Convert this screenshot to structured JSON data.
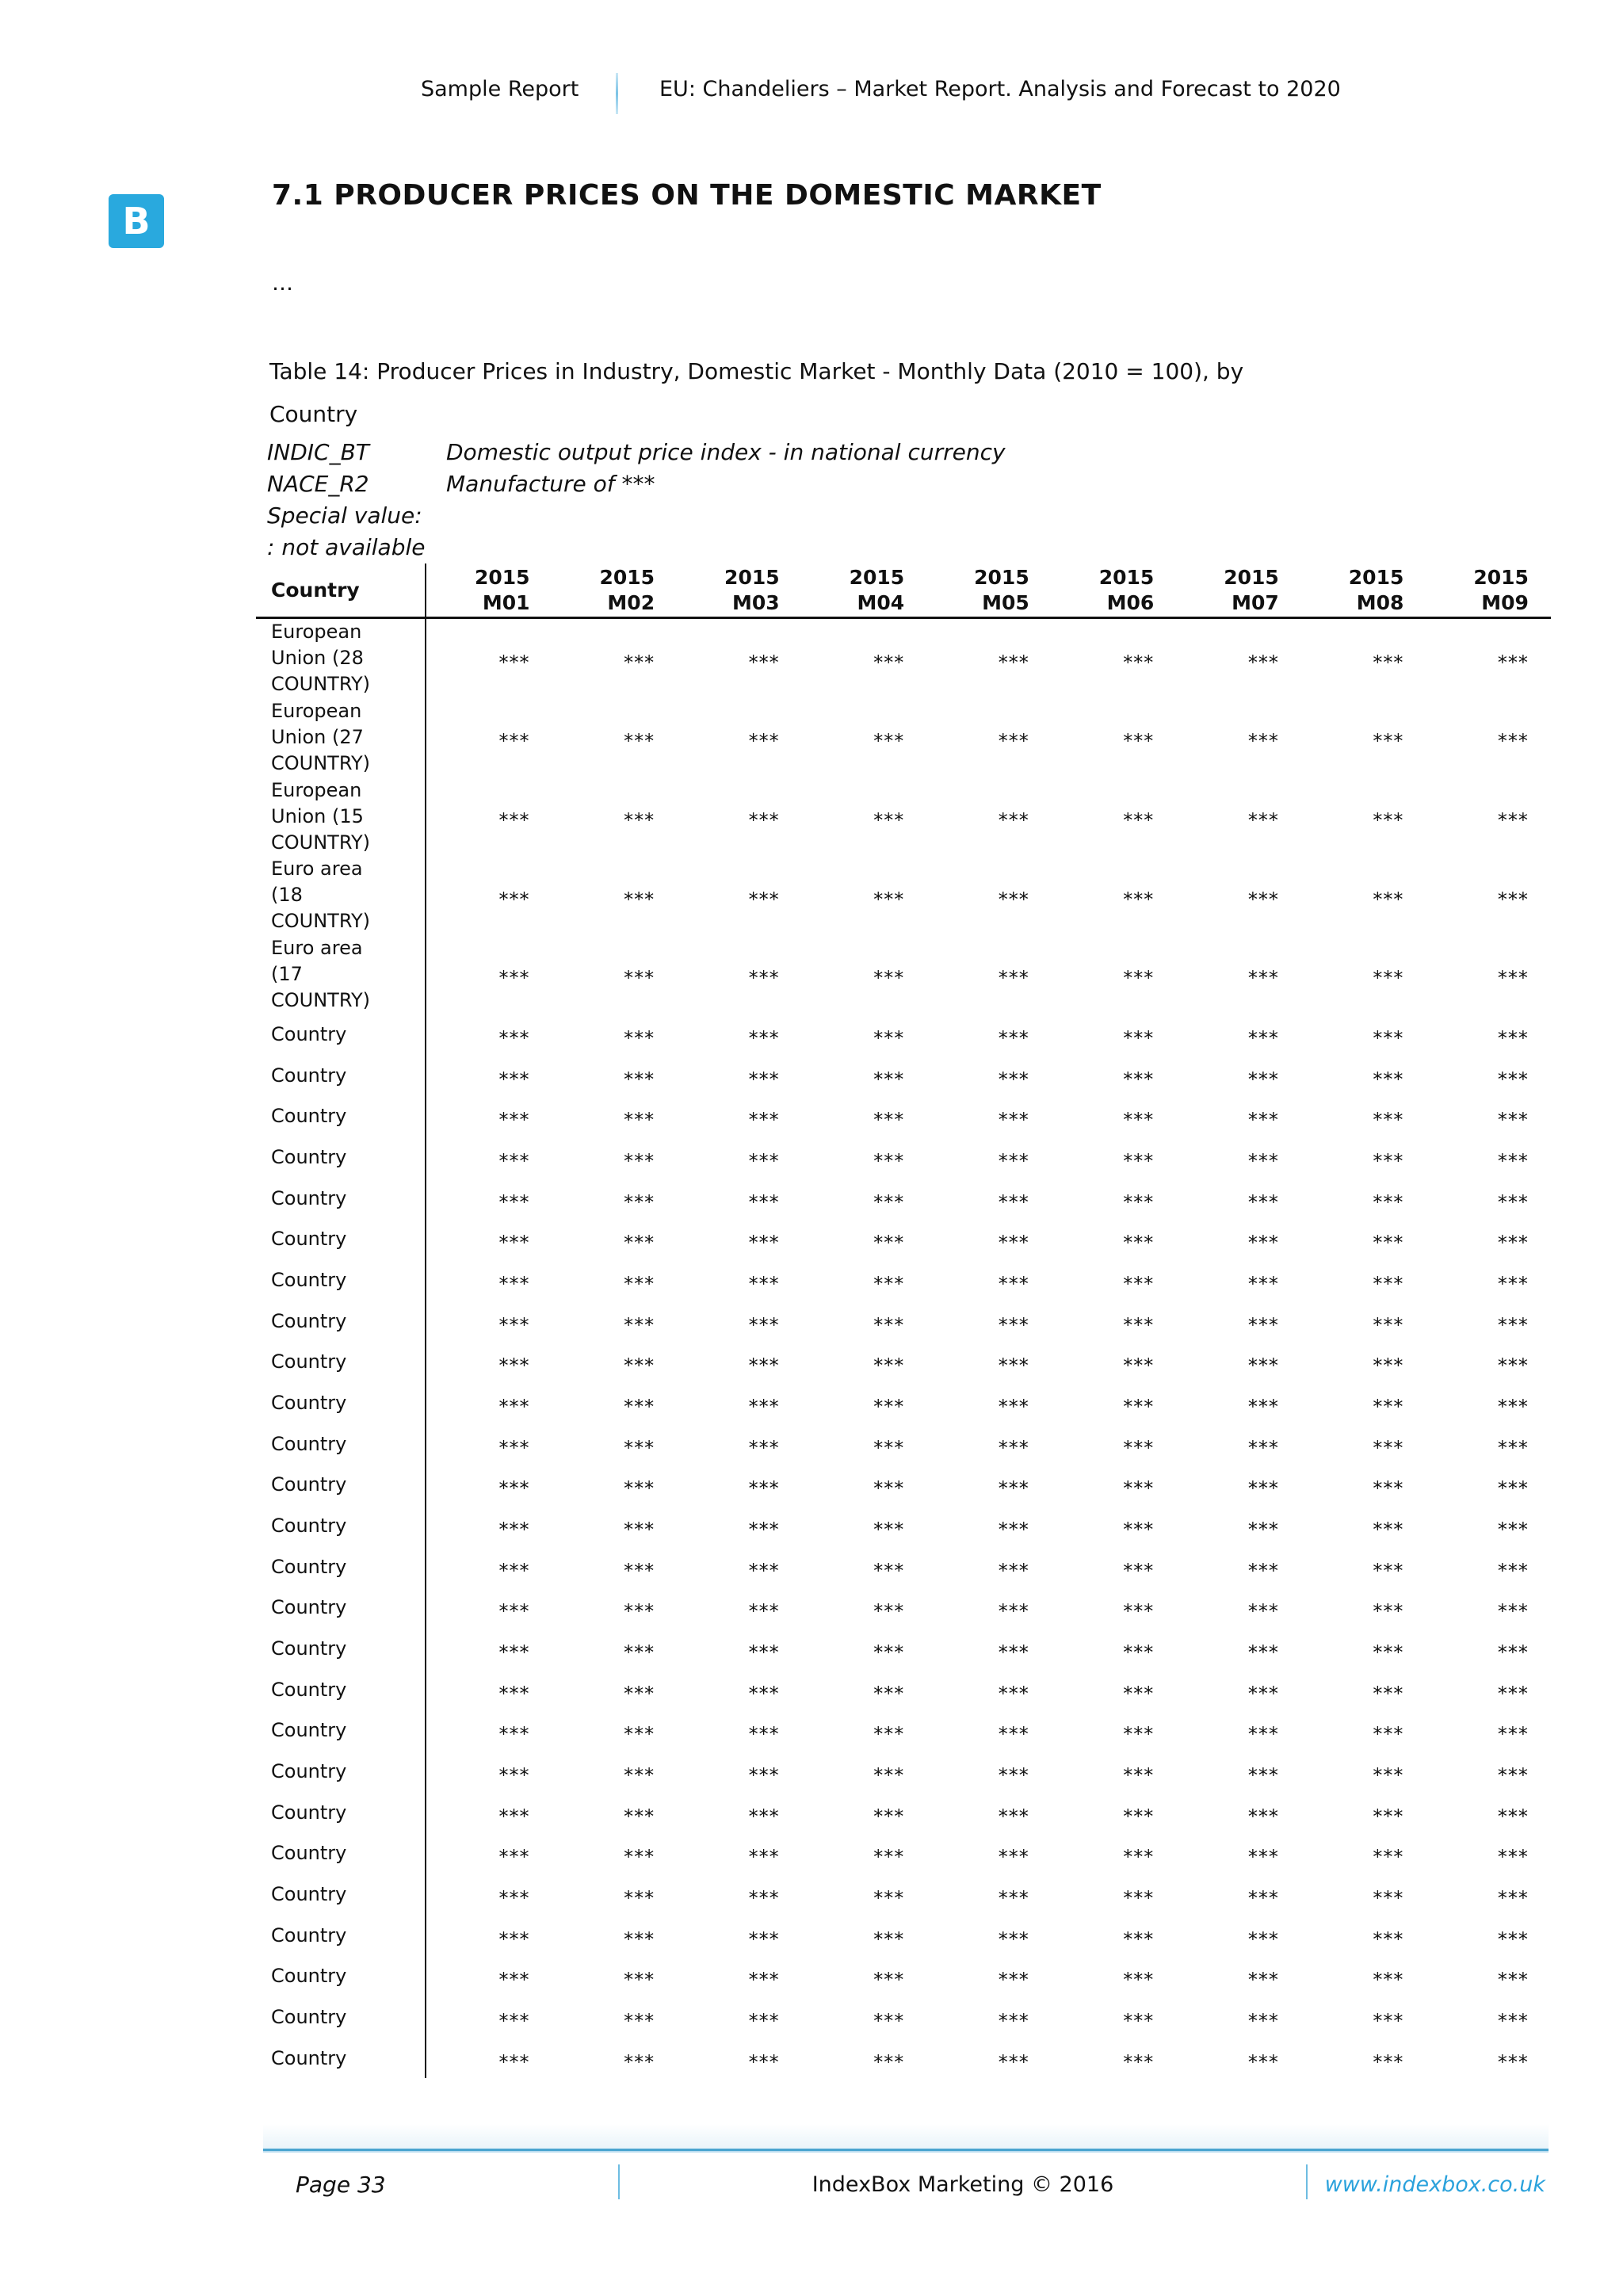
{
  "page_header": {
    "left": "Sample Report",
    "right": "EU: Chandeliers – Market Report. Analysis and Forecast to 2020"
  },
  "logo_letter": "B",
  "section_title": "7.1 PRODUCER PRICES ON THE DOMESTIC MARKET",
  "ellipsis": "…",
  "table_caption_lines": [
    "Table 14: Producer Prices in Industry, Domestic Market - Monthly Data (2010 = 100), by",
    "Country"
  ],
  "legend": {
    "rows": [
      {
        "code": "INDIC_BT",
        "desc": "Domestic output price index - in national currency"
      },
      {
        "code": "NACE_R2",
        "desc": "Manufacture of ***"
      }
    ],
    "special_value_label": "Special value:",
    "special_value_desc": ": not available"
  },
  "table": {
    "header": {
      "country_col": "Country",
      "year": "2015",
      "months": [
        "M01",
        "M02",
        "M03",
        "M04",
        "M05",
        "M06",
        "M07",
        "M08",
        "M09"
      ]
    },
    "agg_rows": [
      {
        "label_lines": [
          "European",
          "Union (28",
          "COUNTRY)"
        ],
        "values": [
          "***",
          "***",
          "***",
          "***",
          "***",
          "***",
          "***",
          "***",
          "***"
        ]
      },
      {
        "label_lines": [
          "European",
          "Union (27",
          "COUNTRY)"
        ],
        "values": [
          "***",
          "***",
          "***",
          "***",
          "***",
          "***",
          "***",
          "***",
          "***"
        ]
      },
      {
        "label_lines": [
          "European",
          "Union (15",
          "COUNTRY)"
        ],
        "values": [
          "***",
          "***",
          "***",
          "***",
          "***",
          "***",
          "***",
          "***",
          "***"
        ]
      },
      {
        "label_lines": [
          "Euro area",
          "(18",
          "COUNTRY)"
        ],
        "values": [
          "***",
          "***",
          "***",
          "***",
          "***",
          "***",
          "***",
          "***",
          "***"
        ]
      },
      {
        "label_lines": [
          "Euro area",
          "(17",
          "COUNTRY)"
        ],
        "values": [
          "***",
          "***",
          "***",
          "***",
          "***",
          "***",
          "***",
          "***",
          "***"
        ]
      }
    ],
    "country_rows": [
      {
        "label": "Country",
        "values": [
          "***",
          "***",
          "***",
          "***",
          "***",
          "***",
          "***",
          "***",
          "***"
        ]
      },
      {
        "label": "Country",
        "values": [
          "***",
          "***",
          "***",
          "***",
          "***",
          "***",
          "***",
          "***",
          "***"
        ]
      },
      {
        "label": "Country",
        "values": [
          "***",
          "***",
          "***",
          "***",
          "***",
          "***",
          "***",
          "***",
          "***"
        ]
      },
      {
        "label": "Country",
        "values": [
          "***",
          "***",
          "***",
          "***",
          "***",
          "***",
          "***",
          "***",
          "***"
        ]
      },
      {
        "label": "Country",
        "values": [
          "***",
          "***",
          "***",
          "***",
          "***",
          "***",
          "***",
          "***",
          "***"
        ]
      },
      {
        "label": "Country",
        "values": [
          "***",
          "***",
          "***",
          "***",
          "***",
          "***",
          "***",
          "***",
          "***"
        ]
      },
      {
        "label": "Country",
        "values": [
          "***",
          "***",
          "***",
          "***",
          "***",
          "***",
          "***",
          "***",
          "***"
        ]
      },
      {
        "label": "Country",
        "values": [
          "***",
          "***",
          "***",
          "***",
          "***",
          "***",
          "***",
          "***",
          "***"
        ]
      },
      {
        "label": "Country",
        "values": [
          "***",
          "***",
          "***",
          "***",
          "***",
          "***",
          "***",
          "***",
          "***"
        ]
      },
      {
        "label": "Country",
        "values": [
          "***",
          "***",
          "***",
          "***",
          "***",
          "***",
          "***",
          "***",
          "***"
        ]
      },
      {
        "label": "Country",
        "values": [
          "***",
          "***",
          "***",
          "***",
          "***",
          "***",
          "***",
          "***",
          "***"
        ]
      },
      {
        "label": "Country",
        "values": [
          "***",
          "***",
          "***",
          "***",
          "***",
          "***",
          "***",
          "***",
          "***"
        ]
      },
      {
        "label": "Country",
        "values": [
          "***",
          "***",
          "***",
          "***",
          "***",
          "***",
          "***",
          "***",
          "***"
        ]
      },
      {
        "label": "Country",
        "values": [
          "***",
          "***",
          "***",
          "***",
          "***",
          "***",
          "***",
          "***",
          "***"
        ]
      },
      {
        "label": "Country",
        "values": [
          "***",
          "***",
          "***",
          "***",
          "***",
          "***",
          "***",
          "***",
          "***"
        ]
      },
      {
        "label": "Country",
        "values": [
          "***",
          "***",
          "***",
          "***",
          "***",
          "***",
          "***",
          "***",
          "***"
        ]
      },
      {
        "label": "Country",
        "values": [
          "***",
          "***",
          "***",
          "***",
          "***",
          "***",
          "***",
          "***",
          "***"
        ]
      },
      {
        "label": "Country",
        "values": [
          "***",
          "***",
          "***",
          "***",
          "***",
          "***",
          "***",
          "***",
          "***"
        ]
      },
      {
        "label": "Country",
        "values": [
          "***",
          "***",
          "***",
          "***",
          "***",
          "***",
          "***",
          "***",
          "***"
        ]
      },
      {
        "label": "Country",
        "values": [
          "***",
          "***",
          "***",
          "***",
          "***",
          "***",
          "***",
          "***",
          "***"
        ]
      },
      {
        "label": "Country",
        "values": [
          "***",
          "***",
          "***",
          "***",
          "***",
          "***",
          "***",
          "***",
          "***"
        ]
      },
      {
        "label": "Country",
        "values": [
          "***",
          "***",
          "***",
          "***",
          "***",
          "***",
          "***",
          "***",
          "***"
        ]
      },
      {
        "label": "Country",
        "values": [
          "***",
          "***",
          "***",
          "***",
          "***",
          "***",
          "***",
          "***",
          "***"
        ]
      },
      {
        "label": "Country",
        "values": [
          "***",
          "***",
          "***",
          "***",
          "***",
          "***",
          "***",
          "***",
          "***"
        ]
      },
      {
        "label": "Country",
        "values": [
          "***",
          "***",
          "***",
          "***",
          "***",
          "***",
          "***",
          "***",
          "***"
        ]
      },
      {
        "label": "Country",
        "values": [
          "***",
          "***",
          "***",
          "***",
          "***",
          "***",
          "***",
          "***",
          "***"
        ]
      }
    ]
  },
  "footer": {
    "page": "Page 33",
    "center": "IndexBox Marketing © 2016",
    "url": "www.indexbox.co.uk"
  },
  "colors": {
    "logo_blue": "#29a9de",
    "footer_line_blue": "#49a4d0",
    "url_blue": "#2ba2dc"
  }
}
